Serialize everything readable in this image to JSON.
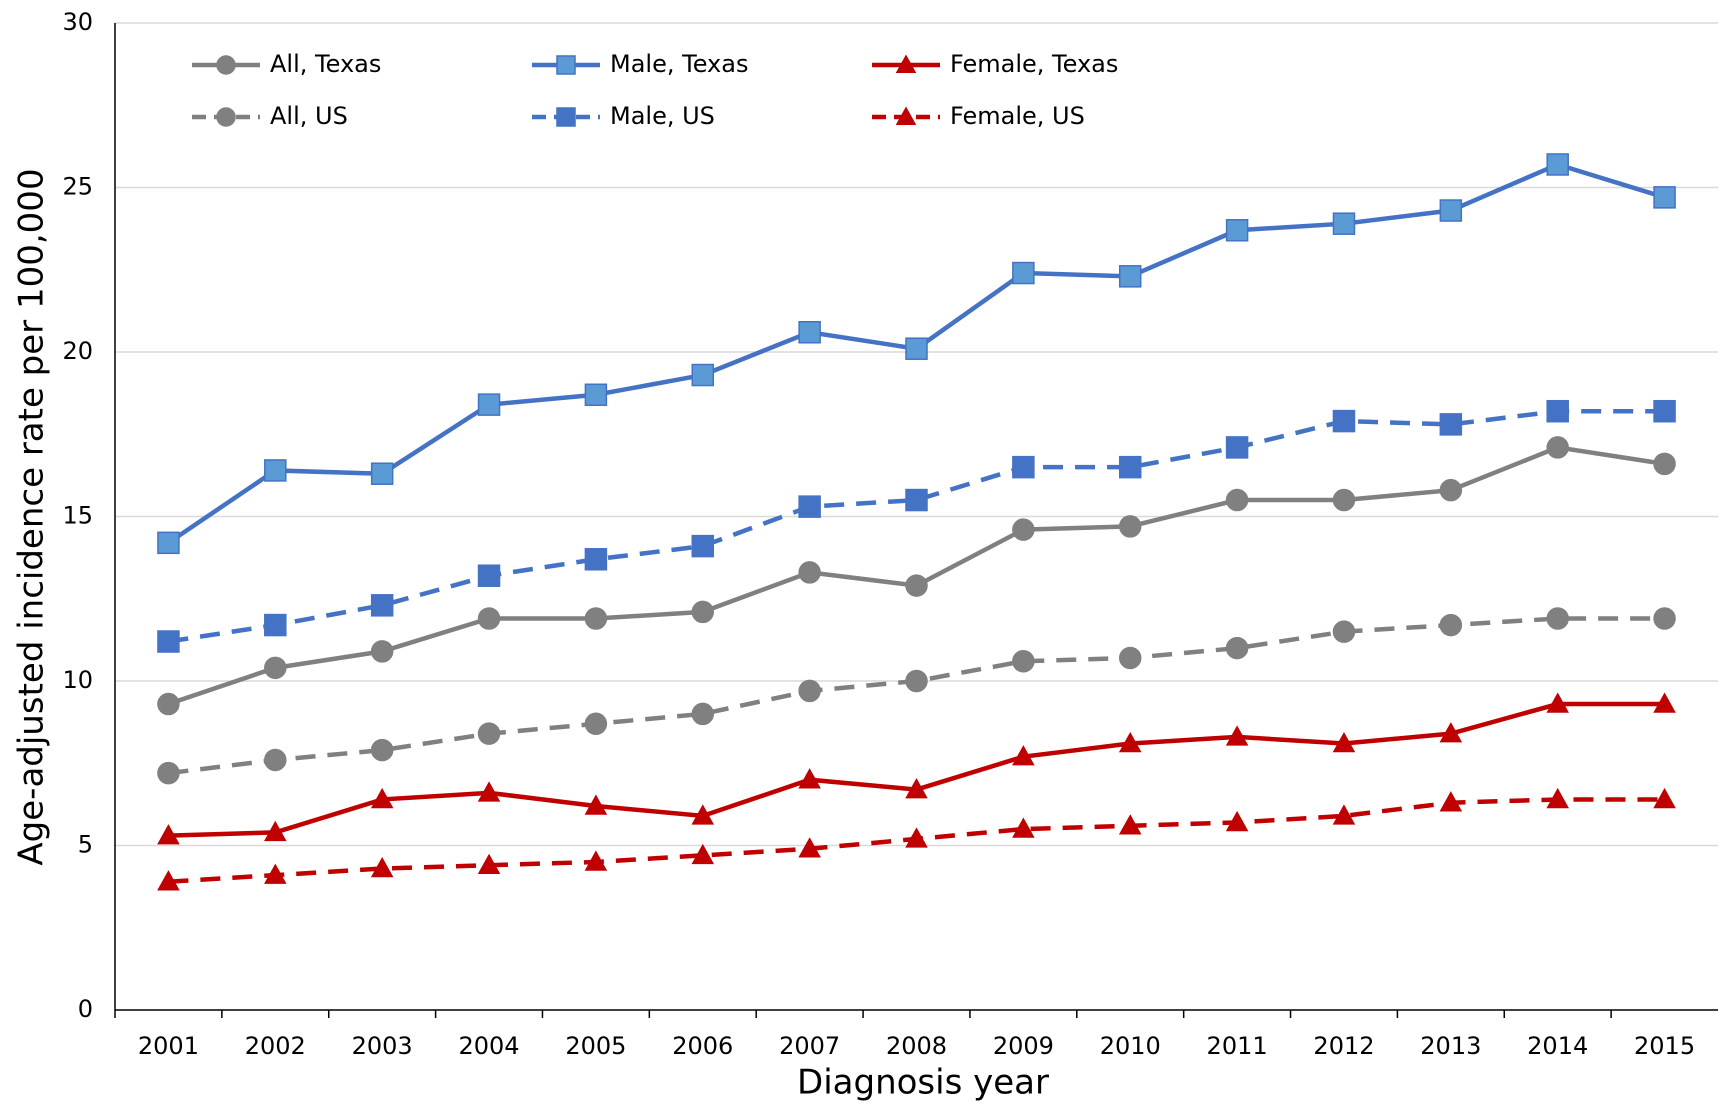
{
  "chart_data": {
    "type": "line",
    "x_label": "Diagnosis year",
    "y_label": "Age-adjusted incidence rate per 100,000",
    "categories": [
      "2001",
      "2002",
      "2003",
      "2004",
      "2005",
      "2006",
      "2007",
      "2008",
      "2009",
      "2010",
      "2011",
      "2012",
      "2013",
      "2014",
      "2015"
    ],
    "series": [
      {
        "name": "All, Texas",
        "color": "#808080",
        "marker": "circle",
        "marker_fill": "#808080",
        "dash": "solid",
        "values": [
          9.3,
          10.4,
          10.9,
          11.9,
          11.9,
          12.1,
          13.3,
          12.9,
          14.6,
          14.7,
          15.5,
          15.5,
          15.8,
          17.1,
          16.6
        ]
      },
      {
        "name": "Male, Texas",
        "color": "#4472c4",
        "marker": "square",
        "marker_fill": "#5b9bd5",
        "dash": "solid",
        "values": [
          14.2,
          16.4,
          16.3,
          18.4,
          18.7,
          19.3,
          20.6,
          20.1,
          22.4,
          22.3,
          23.7,
          23.9,
          24.3,
          25.7,
          24.7
        ]
      },
      {
        "name": "Female, Texas",
        "color": "#c00000",
        "marker": "triangle",
        "marker_fill": "#c00000",
        "dash": "solid",
        "values": [
          5.3,
          5.4,
          6.4,
          6.6,
          6.2,
          5.9,
          7.0,
          6.7,
          7.7,
          8.1,
          8.3,
          8.1,
          8.4,
          9.3,
          9.3
        ]
      },
      {
        "name": "All, US",
        "color": "#808080",
        "marker": "circle",
        "marker_fill": "#808080",
        "dash": "dashed",
        "values": [
          7.2,
          7.6,
          7.9,
          8.4,
          8.7,
          9.0,
          9.7,
          10.0,
          10.6,
          10.7,
          11.0,
          11.5,
          11.7,
          11.9,
          11.9
        ]
      },
      {
        "name": "Male, US",
        "color": "#4472c4",
        "marker": "square",
        "marker_fill": "#4472c4",
        "dash": "dashed",
        "values": [
          11.2,
          11.7,
          12.3,
          13.2,
          13.7,
          14.1,
          15.3,
          15.5,
          16.5,
          16.5,
          17.1,
          17.9,
          17.8,
          18.2,
          18.2
        ]
      },
      {
        "name": "Female, US",
        "color": "#c00000",
        "marker": "triangle",
        "marker_fill": "#c00000",
        "dash": "dashed",
        "values": [
          3.9,
          4.1,
          4.3,
          4.4,
          4.5,
          4.7,
          4.9,
          5.2,
          5.5,
          5.6,
          5.7,
          5.9,
          6.3,
          6.4,
          6.4
        ]
      }
    ],
    "ylim": [
      0,
      30
    ],
    "yticks": [
      0,
      5,
      10,
      15,
      20,
      25,
      30
    ],
    "grid": true,
    "legend": "top-left"
  }
}
